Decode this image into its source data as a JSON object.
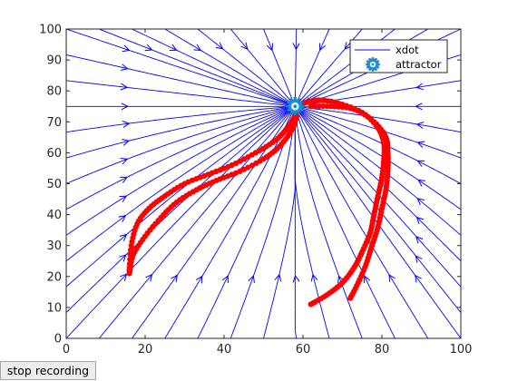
{
  "colors": {
    "streamlines": "#0000ff",
    "demonstrations": "#ff0000",
    "attractor": "#1a8fdc",
    "axes": "#262626",
    "button_bg": "#ededed"
  },
  "controls": {
    "stop_recording_label": "stop recording"
  },
  "chart_data": {
    "type": "streamline",
    "xlim": [
      0,
      100
    ],
    "ylim": [
      0,
      100
    ],
    "xticks": [
      "0",
      "20",
      "40",
      "60",
      "80",
      "100"
    ],
    "yticks": [
      "0",
      "10",
      "20",
      "30",
      "40",
      "50",
      "60",
      "70",
      "80",
      "90",
      "100"
    ],
    "grid": false,
    "legend": {
      "placement": "top-right",
      "entries": [
        {
          "label": "xdot",
          "marker": "line",
          "color": "#0000ff"
        },
        {
          "label": "attractor",
          "marker": "gear-icon",
          "color": "#1a8fdc"
        }
      ]
    },
    "attractor": {
      "x": 58,
      "y": 75
    },
    "demonstrations": [
      {
        "points": [
          [
            16,
            22
          ],
          [
            16.5,
            30
          ],
          [
            18,
            37
          ],
          [
            21,
            42
          ],
          [
            25,
            46
          ],
          [
            30,
            50
          ],
          [
            36,
            53
          ],
          [
            42,
            56
          ],
          [
            48,
            60
          ],
          [
            53,
            64
          ],
          [
            56,
            68
          ],
          [
            58,
            72
          ],
          [
            58.5,
            74.5
          ]
        ]
      },
      {
        "points": [
          [
            16,
            21
          ],
          [
            17,
            27
          ],
          [
            20,
            33
          ],
          [
            24,
            39
          ],
          [
            28,
            44
          ],
          [
            33,
            48
          ],
          [
            38,
            51
          ],
          [
            44,
            54
          ],
          [
            50,
            58
          ],
          [
            54,
            62
          ],
          [
            57,
            67
          ],
          [
            58.5,
            72
          ]
        ]
      },
      {
        "points": [
          [
            62,
            11
          ],
          [
            66,
            14
          ],
          [
            70,
            18
          ],
          [
            73,
            23
          ],
          [
            75,
            28
          ],
          [
            77,
            34
          ],
          [
            78,
            40
          ],
          [
            79,
            46
          ],
          [
            80,
            52
          ],
          [
            80.5,
            58
          ],
          [
            80.5,
            63
          ],
          [
            79,
            68
          ],
          [
            75,
            73
          ],
          [
            69,
            76
          ],
          [
            64,
            77
          ],
          [
            60,
            76
          ]
        ]
      },
      {
        "points": [
          [
            72,
            13
          ],
          [
            74,
            18
          ],
          [
            76,
            24
          ],
          [
            77.5,
            30
          ],
          [
            79,
            36
          ],
          [
            80,
            42
          ],
          [
            81,
            48
          ],
          [
            81.5,
            54
          ],
          [
            81.5,
            60
          ],
          [
            81,
            65
          ],
          [
            78,
            70
          ],
          [
            73,
            74
          ],
          [
            67,
            75
          ],
          [
            62,
            75
          ]
        ]
      }
    ]
  }
}
